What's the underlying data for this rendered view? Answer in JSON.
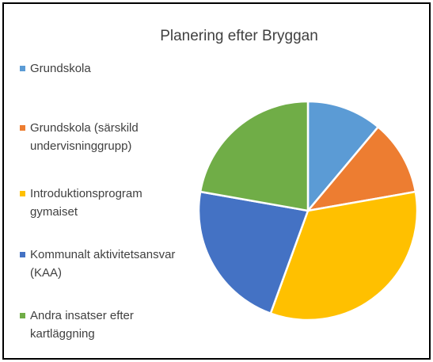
{
  "chart_data": {
    "type": "pie",
    "title": "Planering efter Bryggan",
    "categories": [
      "Grundskola",
      "Grundskola (särskild undervisninggrupp)",
      "Introduktionsprogram gymaiset",
      "Kommunalt aktivitetsansvar (KAA)",
      "Andra insatser efter kartläggning"
    ],
    "values": [
      11.1,
      11.1,
      33.3,
      22.2,
      22.2
    ],
    "colors": [
      "#5b9bd5",
      "#ed7d31",
      "#ffc000",
      "#4472c4",
      "#70ad47"
    ],
    "legend": "left"
  }
}
